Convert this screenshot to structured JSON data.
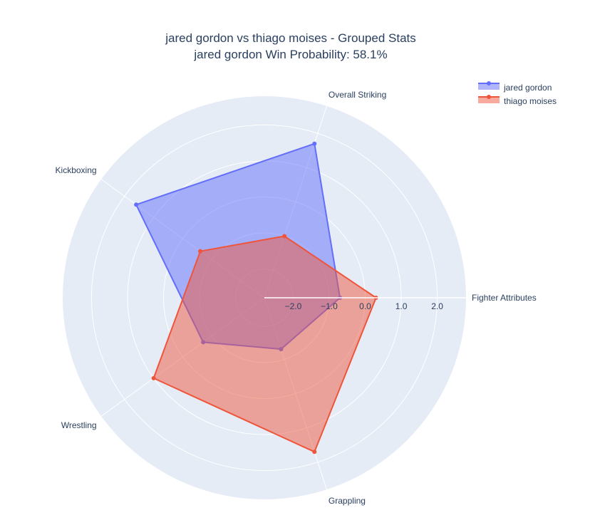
{
  "chart_data": {
    "type": "radar",
    "title_line1": "jared gordon vs thiago moises - Grouped Stats",
    "title_line2": "jared gordon Win Probability: 58.1%",
    "categories": [
      "Fighter Attributes",
      "Overall Striking",
      "Kickboxing",
      "Wrestling",
      "Grappling"
    ],
    "radial_range": [
      -2.8,
      2.8
    ],
    "radial_ticks": [
      -2.0,
      -1.0,
      0.0,
      1.0,
      2.0
    ],
    "radial_tick_labels": [
      "−2.0",
      "−1.0",
      "0.0",
      "1.0",
      "2.0"
    ],
    "grid": true,
    "legend_position": "top-right",
    "series": [
      {
        "name": "jared gordon",
        "color": "#636efa",
        "values": [
          -0.7,
          1.7,
          1.6,
          -0.7,
          -1.3
        ]
      },
      {
        "name": "thiago moises",
        "color": "#ef553b",
        "values": [
          0.3,
          -1.0,
          -0.6,
          1.0,
          1.7
        ]
      }
    ]
  }
}
